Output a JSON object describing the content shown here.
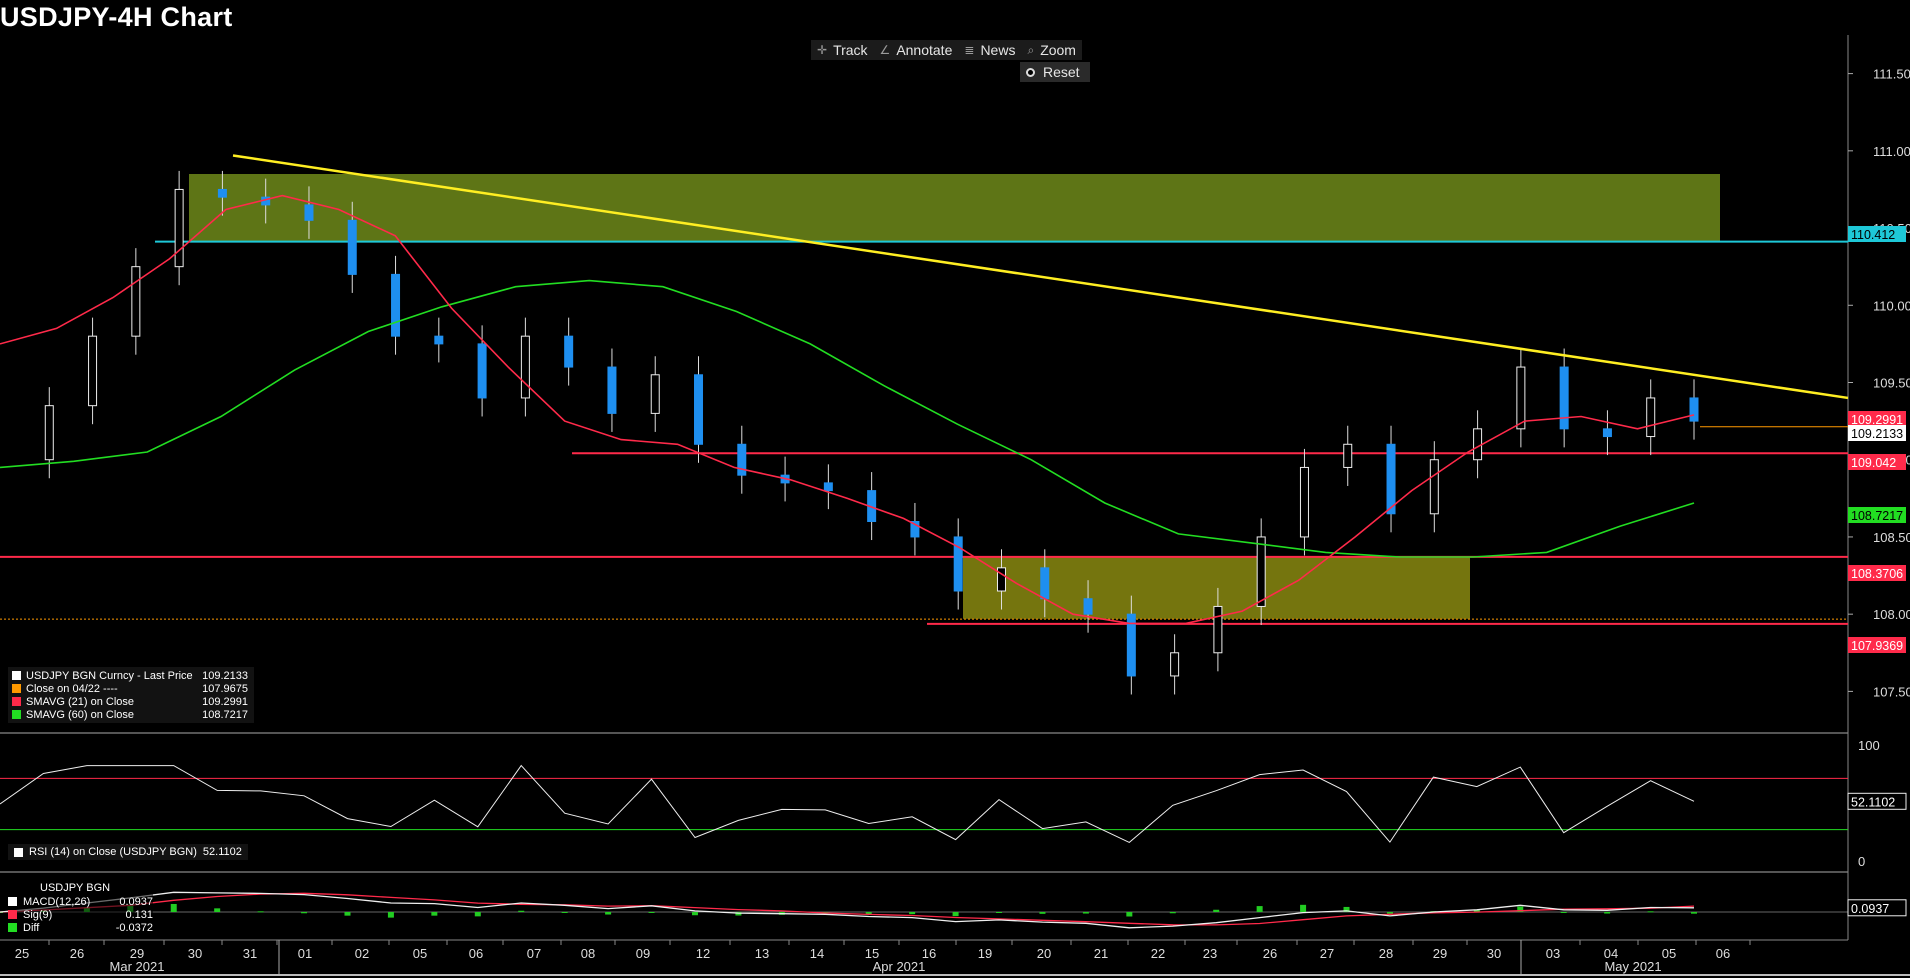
{
  "title": "USDJPY-4H Chart",
  "toolbar": {
    "track": "Track",
    "annotate": "Annotate",
    "news": "News",
    "zoom": "Zoom",
    "reset": "Reset"
  },
  "legend": [
    {
      "label": "USDJPY BGN Curncy - Last Price",
      "value": "109.2133",
      "color": "#ffffff"
    },
    {
      "label": "Close on 04/22 ----",
      "value": "107.9675",
      "color": "#ff9900"
    },
    {
      "label": "SMAVG (21)  on Close",
      "value": "109.2991",
      "color": "#ff2a4a"
    },
    {
      "label": "SMAVG (60)  on Close",
      "value": "108.7217",
      "color": "#22dd22"
    }
  ],
  "rsi_legend": {
    "label": "RSI (14)  on Close (USDJPY BGN)",
    "value": "52.1102"
  },
  "macd_legend": {
    "title": "USDJPY BGN",
    "rows": [
      {
        "label": "MACD(12,26)",
        "value": "0.0937",
        "color": "#ffffff"
      },
      {
        "label": "Sig(9)",
        "value": "0.131",
        "color": "#ff2a4a"
      },
      {
        "label": "Diff",
        "value": "-0.0372",
        "color": "#22dd22"
      }
    ]
  },
  "chart_data": {
    "type": "candlestick",
    "ylim": [
      107.25,
      111.75
    ],
    "yticks": [
      "111.50",
      "111.00",
      "110.50",
      "110.00",
      "109.50",
      "109.00",
      "108.50",
      "108.00",
      "107.50"
    ],
    "x_ticks": [
      "25",
      "26",
      "29",
      "30",
      "31",
      "01",
      "02",
      "05",
      "06",
      "07",
      "08",
      "09",
      "12",
      "13",
      "14",
      "15",
      "16",
      "19",
      "20",
      "21",
      "22",
      "23",
      "26",
      "27",
      "28",
      "29",
      "30",
      "03",
      "04",
      "05",
      "06"
    ],
    "months": [
      "Mar 2021",
      "Apr 2021",
      "May 2021"
    ],
    "price_labels": [
      {
        "text": "110.412",
        "value": 110.412,
        "color": "#1ec8d8",
        "text_color": "#000000"
      },
      {
        "text": "109.2991",
        "value": 109.2991,
        "color": "#ff2a4a",
        "text_color": "#ffffff"
      },
      {
        "text": "109.2133",
        "value": 109.2133,
        "color": "#ffffff",
        "text_color": "#000000"
      },
      {
        "text": "109.042",
        "value": 109.042,
        "color": "#ff2a4a",
        "text_color": "#ffffff"
      },
      {
        "text": "108.7217",
        "value": 108.7217,
        "color": "#22dd22",
        "text_color": "#000000"
      },
      {
        "text": "108.3706",
        "value": 108.3706,
        "color": "#ff2a4a",
        "text_color": "#ffffff"
      },
      {
        "text": "107.9369",
        "value": 107.9369,
        "color": "#ff2a4a",
        "text_color": "#ffffff"
      }
    ],
    "horizontal_lines": [
      {
        "value": 110.412,
        "color": "#1ec8d8",
        "from_day": "26"
      },
      {
        "value": 109.042,
        "color": "#ff2a4a",
        "from_day": "08"
      },
      {
        "value": 108.3706,
        "color": "#ff2a4a",
        "from_day": "25"
      },
      {
        "value": 107.9369,
        "color": "#ff2a4a",
        "from_day": "19"
      }
    ],
    "close_line": {
      "value": 107.9675,
      "color": "#ff9900"
    },
    "last_price_line": {
      "value": 109.2133,
      "color": "#ff9900"
    },
    "trendline": {
      "from": {
        "day": "31",
        "value": 110.97
      },
      "to": {
        "day": "06",
        "value": 109.4
      },
      "color": "#ffee22"
    },
    "boxes": [
      {
        "from_day": "30",
        "to_day": "06",
        "top": 110.85,
        "bottom": 110.41
      },
      {
        "from_day": "19",
        "to_day": "29",
        "top": 108.37,
        "bottom": 107.97
      }
    ],
    "sma21": [
      109.75,
      109.85,
      110.05,
      110.3,
      110.62,
      110.71,
      110.62,
      110.45,
      109.98,
      109.6,
      109.25,
      109.13,
      109.1,
      108.95,
      108.87,
      108.75,
      108.62,
      108.43,
      108.2,
      108.0,
      107.94,
      107.94,
      108.02,
      108.22,
      108.5,
      108.8,
      109.05,
      109.25,
      109.28,
      109.2,
      109.29
    ],
    "sma60": [
      108.95,
      108.99,
      109.05,
      109.28,
      109.58,
      109.83,
      109.99,
      110.12,
      110.16,
      110.12,
      109.96,
      109.75,
      109.48,
      109.23,
      109.0,
      108.72,
      108.52,
      108.46,
      108.4,
      108.37,
      108.37,
      108.4,
      108.57,
      108.72
    ],
    "closes": [
      109.0,
      109.35,
      109.8,
      110.25,
      110.75,
      110.7,
      110.65,
      110.55,
      110.2,
      109.8,
      109.75,
      109.4,
      109.8,
      109.6,
      109.3,
      109.55,
      109.1,
      108.9,
      108.85,
      108.8,
      108.6,
      108.5,
      108.15,
      108.3,
      108.1,
      108.0,
      107.6,
      107.75,
      108.05,
      108.5,
      108.95,
      109.1,
      108.65,
      109.0,
      109.2,
      109.6,
      109.2,
      109.15,
      109.4,
      109.25
    ],
    "rsi": {
      "levels": [
        70,
        30
      ],
      "value": 52.1102,
      "yticks": [
        "100",
        "0"
      ]
    },
    "macd": {
      "macd": 0.0937,
      "signal": 0.131,
      "diff": -0.0372
    }
  }
}
